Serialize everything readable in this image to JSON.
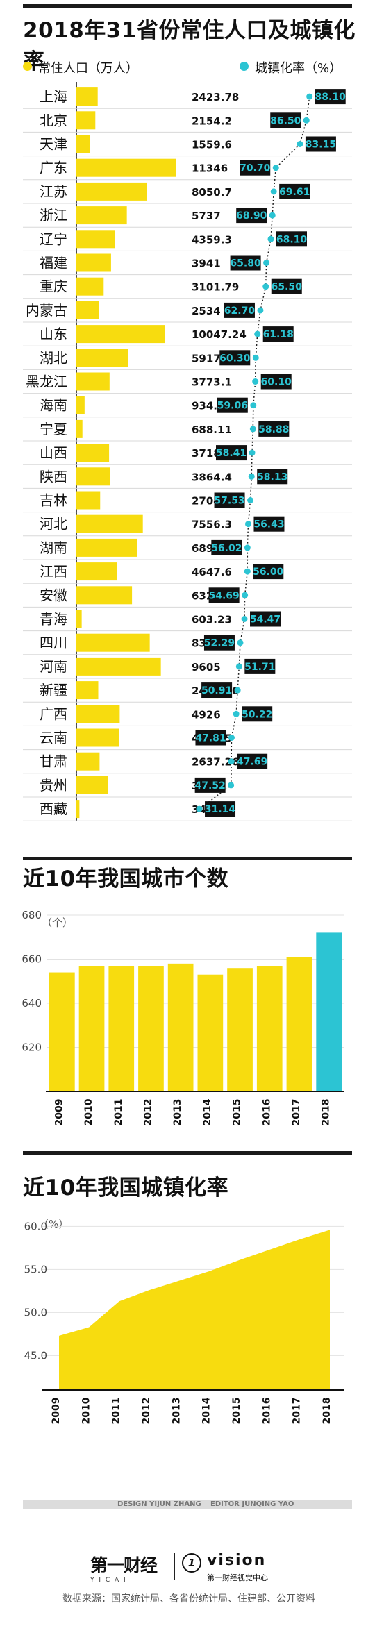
{
  "title": "2018年31省份常住人口及城镇化率",
  "legend": {
    "population": "常住人口（万人）",
    "urbanization": "城镇化率（%）",
    "population_color": "#f7dc0f",
    "urbanization_color": "#2cc4d3"
  },
  "chart_data": [
    {
      "type": "bar",
      "title": "2018年31省份常住人口及城镇化率",
      "categories": [
        "上海",
        "北京",
        "天津",
        "广东",
        "江苏",
        "浙江",
        "辽宁",
        "福建",
        "重庆",
        "内蒙古",
        "山东",
        "湖北",
        "黑龙江",
        "海南",
        "宁夏",
        "山西",
        "陕西",
        "吉林",
        "河北",
        "湖南",
        "江西",
        "安徽",
        "青海",
        "四川",
        "河南",
        "新疆",
        "广西",
        "云南",
        "甘肃",
        "贵州",
        "西藏"
      ],
      "series": [
        {
          "name": "常住人口（万人）",
          "values": [
            "2423.78",
            "2154.2",
            "1559.6",
            "11346",
            "8050.7",
            "5737",
            "4359.3",
            "3941",
            "3101.79",
            "2534",
            "10047.24",
            "5917",
            "3773.1",
            "934.32",
            "688.11",
            "3718.34",
            "3864.4",
            "2704.06",
            "7556.3",
            "6898.8",
            "4647.6",
            "6323.6",
            "603.23",
            "8341",
            "9605",
            "2486.76",
            "4926",
            "4829.5",
            "2637.26",
            "3600",
            "343.82"
          ]
        },
        {
          "name": "城镇化率（%）",
          "values": [
            "88.10",
            "86.50",
            "83.15",
            "70.70",
            "69.61",
            "68.90",
            "68.10",
            "65.80",
            "65.50",
            "62.70",
            "61.18",
            "60.30",
            "60.10",
            "59.06",
            "58.88",
            "58.41",
            "58.13",
            "57.53",
            "56.43",
            "56.02",
            "56.00",
            "54.69",
            "54.47",
            "52.29",
            "51.71",
            "50.91",
            "50.22",
            "47.81",
            "47.69",
            "47.52",
            "31.14"
          ]
        }
      ],
      "xlim": [
        0,
        12000
      ]
    },
    {
      "type": "bar",
      "title": "近10年我国城市个数",
      "unit": "（个）",
      "categories": [
        "2009",
        "2010",
        "2011",
        "2012",
        "2013",
        "2014",
        "2015",
        "2016",
        "2017",
        "2018"
      ],
      "values": [
        654,
        657,
        657,
        657,
        658,
        653,
        656,
        657,
        661,
        672
      ],
      "highlight_color": "#2cc4d3",
      "yticks": [
        "680",
        "660",
        "640",
        "620"
      ],
      "ylim": [
        600,
        680
      ]
    },
    {
      "type": "area",
      "title": "近10年我国城镇化率",
      "unit": "（%）",
      "x": [
        "2009",
        "2010",
        "2011",
        "2012",
        "2013",
        "2014",
        "2015",
        "2016",
        "2017",
        "2018"
      ],
      "values": [
        47.3,
        48.3,
        51.3,
        52.6,
        53.7,
        54.8,
        56.1,
        57.3,
        58.5,
        59.6
      ],
      "yticks": [
        "60.0",
        "55.0",
        "50.0",
        "45.0"
      ],
      "ylim": [
        41,
        61
      ]
    }
  ],
  "credits": {
    "design": "DESIGN YIJUN ZHANG",
    "editor": "EDITOR JUNQING YAO"
  },
  "brand": {
    "logo_text": "第一财经",
    "logo_sub": "Y I C A I",
    "vision": "vision",
    "vision_sub": "第一财经视觉中心"
  },
  "source": "数据来源：国家统计局、各省份统计局、住建部、公开资料"
}
